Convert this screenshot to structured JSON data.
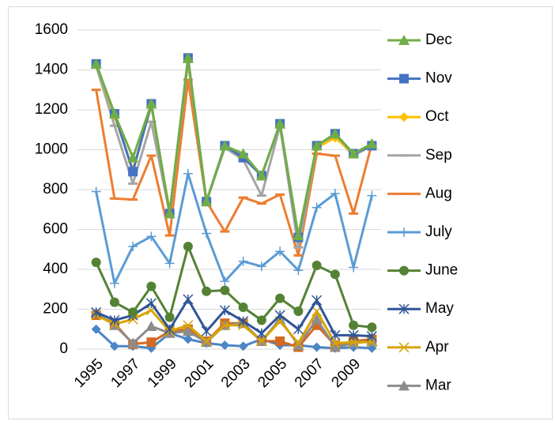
{
  "chart_data": {
    "type": "line",
    "x": [
      1995,
      1996,
      1997,
      1998,
      1999,
      2000,
      2001,
      2002,
      2003,
      2004,
      2005,
      2006,
      2007,
      2008,
      2009,
      2010
    ],
    "xlim": [
      1994.5,
      2010.5
    ],
    "xticks": [
      1995,
      1997,
      1999,
      2001,
      2003,
      2005,
      2007,
      2009
    ],
    "ylim": [
      0,
      1600
    ],
    "yticks": [
      0,
      200,
      400,
      600,
      800,
      1000,
      1200,
      1400,
      1600
    ],
    "grid": true,
    "series": [
      {
        "color": "#4a86c5",
        "marker": "diamond",
        "values": [
          100,
          15,
          15,
          5,
          80,
          50,
          30,
          20,
          15,
          50,
          20,
          20,
          10,
          5,
          10,
          5
        ]
      },
      {
        "color": "#d46a22",
        "marker": "square",
        "values": [
          170,
          130,
          25,
          35,
          90,
          100,
          40,
          130,
          130,
          40,
          40,
          10,
          120,
          20,
          40,
          50
        ]
      },
      {
        "name": "Mar",
        "color": "#8c8c8c",
        "marker": "triangle",
        "values": [
          180,
          120,
          30,
          115,
          80,
          90,
          35,
          120,
          130,
          40,
          150,
          20,
          150,
          10,
          30,
          40
        ]
      },
      {
        "name": "Apr",
        "color": "#d9a400",
        "marker": "x",
        "values": [
          170,
          125,
          150,
          195,
          90,
          120,
          40,
          120,
          120,
          40,
          140,
          30,
          190,
          30,
          35,
          35
        ]
      },
      {
        "name": "May",
        "color": "#2f5597",
        "marker": "star",
        "values": [
          185,
          145,
          170,
          230,
          100,
          250,
          90,
          195,
          140,
          80,
          170,
          100,
          245,
          70,
          70,
          65
        ]
      },
      {
        "name": "June",
        "color": "#548235",
        "marker": "circle",
        "values": [
          435,
          235,
          185,
          315,
          160,
          515,
          290,
          295,
          210,
          145,
          255,
          190,
          420,
          375,
          120,
          110
        ]
      },
      {
        "name": "July",
        "color": "#5b9bd5",
        "marker": "plus",
        "values": [
          790,
          330,
          515,
          565,
          430,
          880,
          580,
          340,
          440,
          415,
          490,
          395,
          710,
          780,
          410,
          770
        ]
      },
      {
        "name": "Aug",
        "color": "#ed7d31",
        "marker": "dash",
        "values": [
          1300,
          755,
          750,
          970,
          570,
          1350,
          740,
          590,
          760,
          730,
          775,
          470,
          980,
          970,
          680,
          1030
        ]
      },
      {
        "name": "Sep",
        "color": "#a5a5a5",
        "marker": "dash",
        "values": [
          1420,
          1120,
          830,
          1140,
          680,
          1440,
          740,
          1010,
          950,
          770,
          1120,
          510,
          1010,
          1070,
          970,
          1020
        ]
      },
      {
        "name": "Oct",
        "color": "#ffc000",
        "marker": "diamond",
        "values": [
          1430,
          1170,
          900,
          1220,
          690,
          1450,
          740,
          1020,
          960,
          870,
          1130,
          560,
          1010,
          1060,
          980,
          1030
        ]
      },
      {
        "name": "Nov",
        "color": "#4472c4",
        "marker": "square",
        "values": [
          1430,
          1180,
          890,
          1230,
          680,
          1460,
          740,
          1020,
          960,
          870,
          1130,
          560,
          1020,
          1080,
          980,
          1020
        ]
      },
      {
        "name": "Dec",
        "color": "#70ad47",
        "marker": "triangle",
        "values": [
          1430,
          1180,
          960,
          1230,
          680,
          1460,
          740,
          1020,
          980,
          870,
          1130,
          570,
          1020,
          1080,
          980,
          1030
        ]
      }
    ]
  }
}
